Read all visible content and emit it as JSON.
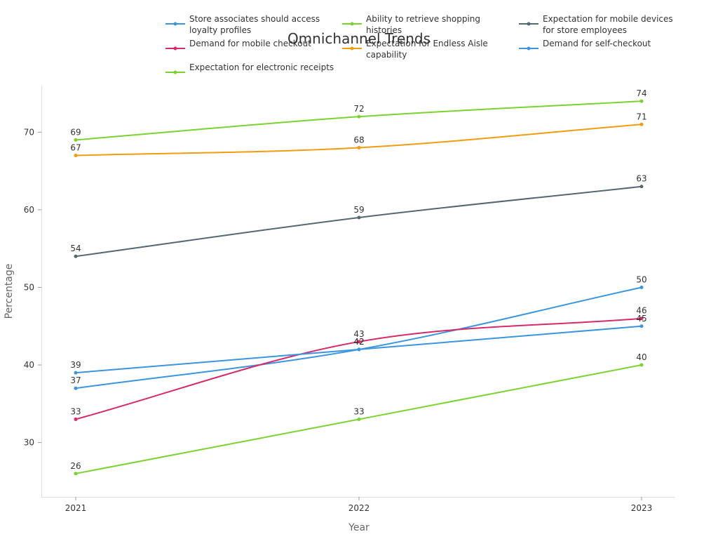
{
  "chart_data": {
    "type": "line",
    "title": "Omnichannel Trends",
    "xlabel": "Year",
    "ylabel": "Percentage",
    "categories": [
      "2021",
      "2022",
      "2023"
    ],
    "ylim": [
      23,
      76
    ],
    "yticks": [
      30,
      40,
      50,
      60,
      70
    ],
    "legend_position": "top",
    "series": [
      {
        "name": "Store associates should access loyalty profiles",
        "legend_lines": [
          "Store associates should access",
          "loyalty profiles"
        ],
        "color": "#3b95e0",
        "values": [
          37,
          42,
          50
        ]
      },
      {
        "name": "Ability to retrieve shopping histories",
        "legend_lines": [
          "Ability to retrieve shopping",
          "histories"
        ],
        "color": "#7ad430",
        "values": [
          69,
          72,
          74
        ]
      },
      {
        "name": "Expectation for mobile devices for store employees",
        "legend_lines": [
          "Expectation for mobile devices",
          "for store employees"
        ],
        "color": "#546874",
        "values": [
          54,
          59,
          63
        ]
      },
      {
        "name": "Demand for mobile checkout",
        "legend_lines": [
          "Demand for mobile checkout"
        ],
        "color": "#d62b68",
        "values": [
          33,
          43,
          46
        ]
      },
      {
        "name": "Expectation for Endless Aisle capability",
        "legend_lines": [
          "Expectation for Endless Aisle",
          "capability"
        ],
        "color": "#f39c12",
        "values": [
          67,
          68,
          71
        ]
      },
      {
        "name": "Demand for self-checkout",
        "legend_lines": [
          "Demand for self-checkout"
        ],
        "color": "#3b95e0",
        "values": [
          39,
          42,
          45
        ]
      },
      {
        "name": "Expectation for electronic receipts",
        "legend_lines": [
          "Expectation for electronic receipts"
        ],
        "color": "#7ad430",
        "values": [
          26,
          33,
          40
        ]
      }
    ]
  }
}
